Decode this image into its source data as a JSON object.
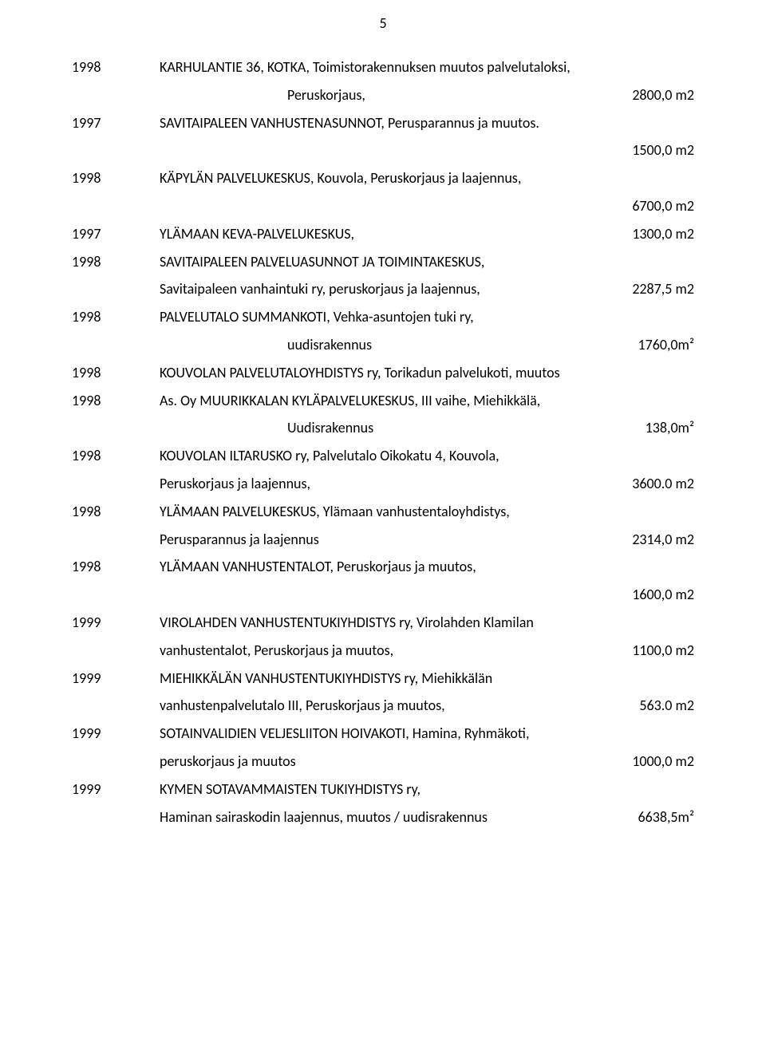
{
  "page_number": "5",
  "font": {
    "family": "Calibri",
    "body_size_pt": 13
  },
  "colors": {
    "text": "#000000",
    "background": "#ffffff"
  },
  "rows": [
    {
      "year": "1998",
      "desc": "KARHULANTIE 36, KOTKA, Toimistorakennuksen muutos palvelutaloksi,",
      "value": ""
    },
    {
      "year": "",
      "desc": "Peruskorjaus,",
      "value": "2800,0 m2",
      "indent": true
    },
    {
      "year": "1997",
      "desc": "SAVITAIPALEEN VANHUSTENASUNNOT, Perusparannus ja muutos.",
      "value": ""
    },
    {
      "year": "",
      "desc": "",
      "value": "1500,0 m2",
      "value_only": true
    },
    {
      "year": "1998",
      "desc": "KÄPYLÄN PALVELUKESKUS, Kouvola, Peruskorjaus ja laajennus,",
      "value": ""
    },
    {
      "year": "",
      "desc": "",
      "value": "6700,0 m2",
      "value_only": true
    },
    {
      "year": "1997",
      "desc": "YLÄMAAN KEVA-PALVELUKESKUS,",
      "value": "1300,0 m2"
    },
    {
      "year": "1998",
      "desc": "SAVITAIPALEEN PALVELUASUNNOT JA TOIMINTAKESKUS,",
      "value": ""
    },
    {
      "year": "",
      "desc": "Savitaipaleen vanhaintuki ry, peruskorjaus ja laajennus,",
      "value": "2287,5 m2",
      "cont": true
    },
    {
      "year": "1998",
      "desc": "PALVELUTALO SUMMANKOTI, Vehka-asuntojen tuki ry,",
      "value": ""
    },
    {
      "year": "",
      "desc": "uudisrakennus",
      "value": "1760,0m²",
      "indent": true
    },
    {
      "year": "1998",
      "desc": "KOUVOLAN PALVELUTALOYHDISTYS ry, Torikadun palvelukoti, muutos",
      "value": ""
    },
    {
      "year": "1998",
      "desc": "As. Oy MUURIKKALAN KYLÄPALVELUKESKUS, III vaihe, Miehikkälä,",
      "value": ""
    },
    {
      "year": "",
      "desc": "Uudisrakennus",
      "value": "138,0m²",
      "indent": true
    },
    {
      "year": "1998",
      "desc": "KOUVOLAN ILTARUSKO ry, Palvelutalo Oikokatu 4, Kouvola,",
      "value": ""
    },
    {
      "year": "",
      "desc": "Peruskorjaus ja laajennus,",
      "value": "3600.0 m2",
      "cont": true
    },
    {
      "year": "1998",
      "desc": "YLÄMAAN PALVELUKESKUS, Ylämaan vanhustentaloyhdistys,",
      "value": ""
    },
    {
      "year": "",
      "desc": "Perusparannus ja laajennus",
      "value": "2314,0 m2",
      "cont": true
    },
    {
      "year": "1998",
      "desc": "YLÄMAAN VANHUSTENTALOT, Peruskorjaus ja muutos,",
      "value": ""
    },
    {
      "year": "",
      "desc": "",
      "value": "1600,0 m2",
      "value_only": true
    },
    {
      "year": "1999",
      "desc": "VIROLAHDEN VANHUSTENTUKIYHDISTYS ry, Virolahden Klamilan",
      "value": ""
    },
    {
      "year": "",
      "desc": "vanhustentalot, Peruskorjaus ja muutos,",
      "value": "1100,0 m2",
      "cont": true
    },
    {
      "year": "1999",
      "desc": "MIEHIKKÄLÄN VANHUSTENTUKIYHDISTYS ry, Miehikkälän",
      "value": ""
    },
    {
      "year": "",
      "desc": "vanhustenpalvelutalo III, Peruskorjaus ja muutos,",
      "value": "563.0 m2",
      "cont": true
    },
    {
      "year": "1999",
      "desc": "SOTAINVALIDIEN VELJESLIITON HOIVAKOTI, Hamina, Ryhmäkoti,",
      "value": ""
    },
    {
      "year": "",
      "desc": "peruskorjaus ja muutos",
      "value": "1000,0 m2",
      "cont": true
    },
    {
      "year": "1999",
      "desc": "KYMEN SOTAVAMMAISTEN TUKIYHDISTYS ry,",
      "value": ""
    },
    {
      "year": "",
      "desc": "Haminan sairaskodin laajennus, muutos / uudisrakennus",
      "value": "6638,5m²",
      "cont": true
    }
  ]
}
